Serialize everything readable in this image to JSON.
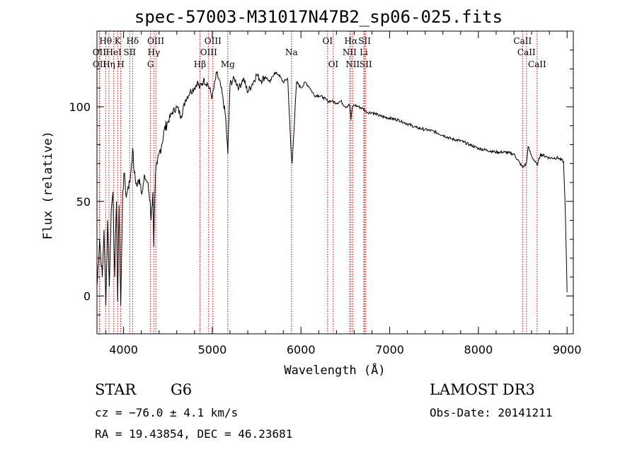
{
  "chart_data": {
    "type": "line",
    "title": "spec-57003-M31017N47B2_sp06-025.fits",
    "xlabel": "Wavelength (Å)",
    "ylabel": "Flux (relative)",
    "xlim": [
      3700,
      9070
    ],
    "ylim": [
      -20,
      140
    ],
    "xticks": [
      4000,
      5000,
      6000,
      7000,
      8000,
      9000
    ],
    "yticks": [
      0,
      50,
      100
    ],
    "series": [
      {
        "name": "spectrum",
        "x": [
          3700,
          3730,
          3760,
          3780,
          3800,
          3820,
          3840,
          3860,
          3880,
          3900,
          3920,
          3933,
          3950,
          3968,
          3990,
          4010,
          4030,
          4050,
          4070,
          4090,
          4102,
          4120,
          4150,
          4180,
          4210,
          4240,
          4270,
          4300,
          4310,
          4330,
          4340,
          4360,
          4380,
          4400,
          4430,
          4460,
          4500,
          4550,
          4600,
          4650,
          4700,
          4750,
          4800,
          4830,
          4861,
          4900,
          4950,
          5000,
          5050,
          5100,
          5150,
          5175,
          5200,
          5250,
          5300,
          5350,
          5400,
          5450,
          5500,
          5550,
          5600,
          5650,
          5700,
          5750,
          5800,
          5850,
          5890,
          5900,
          5950,
          6000,
          6050,
          6100,
          6150,
          6200,
          6250,
          6300,
          6350,
          6400,
          6450,
          6500,
          6550,
          6563,
          6580,
          6600,
          6650,
          6700,
          6750,
          6800,
          6900,
          7000,
          7100,
          7200,
          7300,
          7400,
          7500,
          7600,
          7700,
          7800,
          7900,
          8000,
          8100,
          8200,
          8300,
          8400,
          8498,
          8542,
          8560,
          8600,
          8662,
          8700,
          8800,
          8900,
          8960,
          8980,
          9000
        ],
        "y": [
          5,
          30,
          10,
          35,
          -5,
          40,
          5,
          45,
          55,
          10,
          50,
          -3,
          48,
          -5,
          55,
          65,
          52,
          58,
          60,
          70,
          78,
          65,
          58,
          62,
          55,
          63,
          60,
          50,
          40,
          55,
          26,
          64,
          70,
          75,
          80,
          88,
          92,
          97,
          100,
          95,
          104,
          108,
          110,
          113,
          110,
          114,
          112,
          105,
          118,
          110,
          95,
          75,
          112,
          115,
          110,
          115,
          108,
          112,
          117,
          114,
          116,
          113,
          118,
          117,
          113,
          115,
          75,
          70,
          113,
          110,
          113,
          110,
          106,
          106,
          105,
          103,
          103,
          102,
          103,
          100,
          101,
          93,
          100,
          101,
          100,
          99,
          97,
          97,
          95,
          94,
          93,
          91,
          89,
          88,
          87,
          85,
          83,
          82,
          80,
          78,
          77,
          76,
          76,
          75,
          68,
          70,
          79,
          74,
          69,
          75,
          73,
          73,
          71,
          45,
          2
        ]
      }
    ],
    "spectral_lines": [
      {
        "label": "Hθ",
        "wl": 3798,
        "row": 0
      },
      {
        "label": "K",
        "wl": 3933,
        "row": 0
      },
      {
        "label": "Hδ",
        "wl": 4102,
        "row": 0
      },
      {
        "label": "OIII",
        "wl": 4363,
        "row": 0
      },
      {
        "label": "OIII",
        "wl": 5007,
        "row": 0
      },
      {
        "label": "OI",
        "wl": 6300,
        "row": 0
      },
      {
        "label": "Hα",
        "wl": 6563,
        "row": 0
      },
      {
        "label": "SII",
        "wl": 6717,
        "row": 0
      },
      {
        "label": "CaII",
        "wl": 8498,
        "row": 0
      },
      {
        "label": "OII",
        "wl": 3727,
        "row": 1
      },
      {
        "label": "HeI",
        "wl": 3889,
        "row": 1
      },
      {
        "label": "SII",
        "wl": 4069,
        "row": 1
      },
      {
        "label": "Hγ",
        "wl": 4341,
        "row": 1
      },
      {
        "label": "OIII",
        "wl": 4959,
        "row": 1
      },
      {
        "label": "Na",
        "wl": 5893,
        "row": 1
      },
      {
        "label": "NII",
        "wl": 6548,
        "row": 1
      },
      {
        "label": "Li",
        "wl": 6708,
        "row": 1
      },
      {
        "label": "CaII",
        "wl": 8542,
        "row": 1
      },
      {
        "label": "OII",
        "wl": 3729,
        "row": 2
      },
      {
        "label": "Hη",
        "wl": 3835,
        "row": 2
      },
      {
        "label": "H",
        "wl": 3968,
        "row": 2
      },
      {
        "label": "G",
        "wl": 4304,
        "row": 2
      },
      {
        "label": "Hβ",
        "wl": 4861,
        "row": 2
      },
      {
        "label": "Mg",
        "wl": 5175,
        "row": 2
      },
      {
        "label": "OI",
        "wl": 6364,
        "row": 2
      },
      {
        "label": "NII",
        "wl": 6583,
        "row": 2
      },
      {
        "label": "SII",
        "wl": 6731,
        "row": 2
      },
      {
        "label": "CaII",
        "wl": 8662,
        "row": 2
      }
    ]
  },
  "info": {
    "class_label": "STAR",
    "subclass": "G6",
    "survey": "LAMOST DR3",
    "cz": "cz = −76.0 ± 4.1 km/s",
    "obs_date": "Obs-Date: 20141211",
    "coords": "RA =  19.43854, DEC =  46.23681"
  },
  "colors": {
    "lines": "#cc0000",
    "spectrum": "#000000"
  }
}
